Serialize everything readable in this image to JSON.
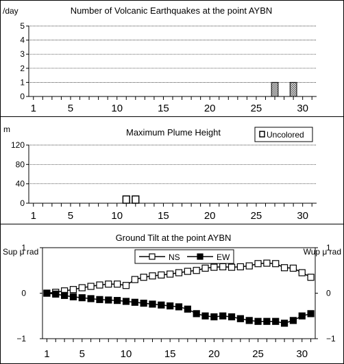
{
  "chart_data": [
    {
      "type": "bar",
      "title": "Number of Volcanic Earthquakes at the point AYBN",
      "ylabel": "/day",
      "xlim": [
        0.5,
        31.5
      ],
      "ylim": [
        0,
        5
      ],
      "yticks": [
        0,
        1,
        2,
        3,
        4,
        5
      ],
      "xticks": [
        1,
        5,
        10,
        15,
        20,
        25,
        30
      ],
      "grid": "horizontal-dotted",
      "pattern": "checkered-gray",
      "x": [
        27,
        29
      ],
      "values": [
        1,
        1
      ]
    },
    {
      "type": "bar",
      "title": "Maximum Plume Height",
      "ylabel": "m",
      "xlim": [
        0.5,
        31.5
      ],
      "ylim": [
        0,
        120
      ],
      "yticks": [
        0,
        40,
        80,
        120
      ],
      "xticks": [
        1,
        5,
        10,
        15,
        20,
        25,
        30
      ],
      "grid": "horizontal-dotted",
      "legend": {
        "label": "Uncolored",
        "placement": "top-right"
      },
      "x": [
        11,
        12
      ],
      "values": [
        15,
        15
      ]
    },
    {
      "type": "line",
      "title": "Ground Tilt at the point AYBN",
      "ylabel_left": "Sup μ rad",
      "ylabel_right": "Wup μ rad",
      "xlim": [
        0.5,
        31.5
      ],
      "ylim": [
        -1,
        1
      ],
      "yticks": [
        -1,
        0,
        1
      ],
      "xticks": [
        1,
        5,
        10,
        15,
        20,
        25,
        30
      ],
      "legend_placement": "top-center",
      "x": [
        1,
        2,
        3,
        4,
        5,
        6,
        7,
        8,
        9,
        10,
        11,
        12,
        13,
        14,
        15,
        16,
        17,
        18,
        19,
        20,
        21,
        22,
        23,
        24,
        25,
        26,
        27,
        28,
        29,
        30,
        31
      ],
      "series": [
        {
          "name": "NS",
          "marker": "open-square",
          "values": [
            0.0,
            0.02,
            0.05,
            0.08,
            0.12,
            0.15,
            0.18,
            0.2,
            0.2,
            0.17,
            0.3,
            0.35,
            0.38,
            0.4,
            0.42,
            0.45,
            0.48,
            0.5,
            0.55,
            0.57,
            0.58,
            0.57,
            0.58,
            0.6,
            0.65,
            0.66,
            0.65,
            0.56,
            0.55,
            0.45,
            0.35
          ]
        },
        {
          "name": "EW",
          "marker": "filled-square",
          "values": [
            0.0,
            -0.02,
            -0.05,
            -0.08,
            -0.1,
            -0.12,
            -0.14,
            -0.15,
            -0.16,
            -0.18,
            -0.2,
            -0.22,
            -0.24,
            -0.26,
            -0.28,
            -0.3,
            -0.35,
            -0.45,
            -0.5,
            -0.52,
            -0.5,
            -0.52,
            -0.56,
            -0.6,
            -0.62,
            -0.62,
            -0.62,
            -0.66,
            -0.6,
            -0.5,
            -0.45
          ]
        }
      ]
    }
  ]
}
